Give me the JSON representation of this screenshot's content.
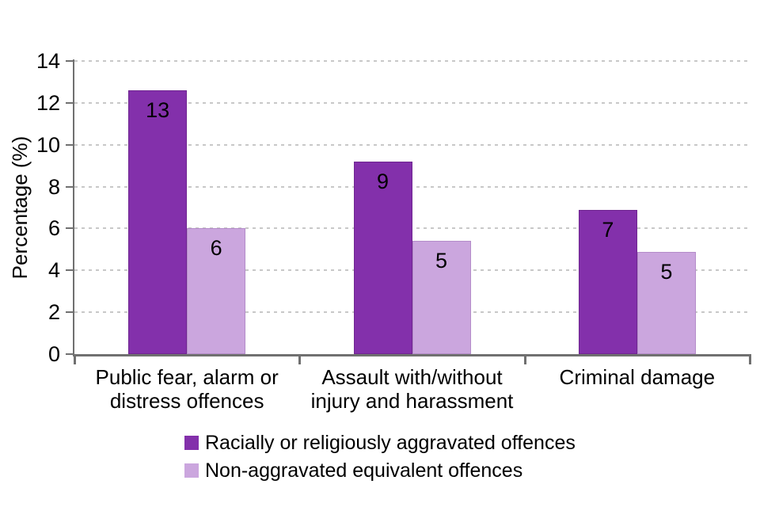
{
  "colors": {
    "background": "#FFFFFF",
    "axis": "#707070",
    "gridline": "#C8C8C8",
    "text": "#000000",
    "series_dark": "#8330AB",
    "series_light": "#CBA6DE"
  },
  "chart_data": {
    "type": "bar",
    "title": "",
    "xlabel": "",
    "ylabel": "Percentage (%)",
    "ylim": [
      0,
      14
    ],
    "yticks": [
      0,
      2,
      4,
      6,
      8,
      10,
      12,
      14
    ],
    "grid": "horizontal-dashed",
    "legend_position": "bottom",
    "categories": [
      {
        "label": "Public fear, alarm or distress offences",
        "lines": [
          "Public fear, alarm or",
          "distress offences"
        ]
      },
      {
        "label": "Assault with/without injury and harassment",
        "lines": [
          "Assault with/without",
          "injury and harassment"
        ]
      },
      {
        "label": "Criminal damage",
        "lines": [
          "Criminal damage"
        ]
      }
    ],
    "series": [
      {
        "name": "Racially or religiously aggravated offences",
        "color": "#8330AB",
        "values": [
          12.6,
          9.2,
          6.9
        ],
        "data_labels": [
          "13",
          "9",
          "7"
        ]
      },
      {
        "name": "Non-aggravated equivalent offences",
        "color": "#CBA6DE",
        "values": [
          6.0,
          5.4,
          4.9
        ],
        "data_labels": [
          "6",
          "5",
          "5"
        ]
      }
    ]
  }
}
